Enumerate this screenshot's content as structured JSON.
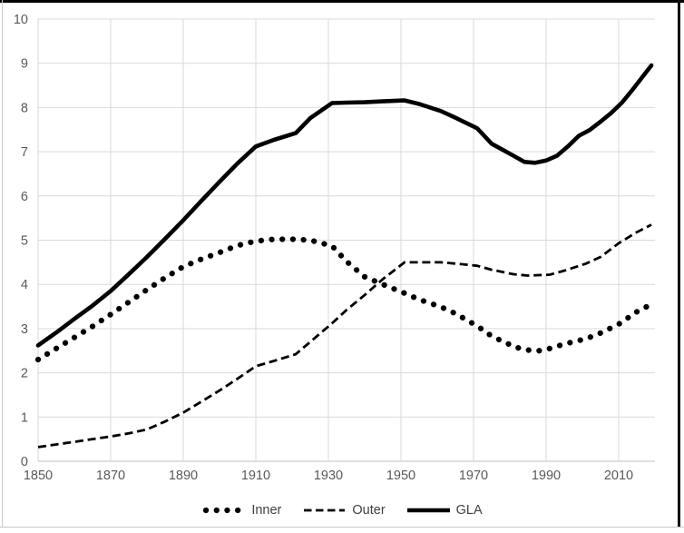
{
  "chart_data": {
    "type": "line",
    "title": "",
    "xlabel": "",
    "ylabel": "",
    "x_axis": {
      "min": 1850,
      "max": 2020,
      "ticks": [
        1850,
        1870,
        1890,
        1910,
        1930,
        1950,
        1970,
        1990,
        2010
      ]
    },
    "y_axis": {
      "min": 0,
      "max": 10,
      "ticks": [
        0,
        1,
        2,
        3,
        4,
        5,
        6,
        7,
        8,
        9,
        10
      ]
    },
    "grid": "on",
    "legend_position": "bottom-center",
    "colors": {
      "line": "#000000",
      "gridline": "#d9d9d9",
      "axis_line": "#bfbfbf",
      "tick_label": "#595959",
      "legend_text": "#404040"
    },
    "series": [
      {
        "name": "Inner",
        "style": "dotted",
        "points": [
          [
            1850,
            2.3
          ],
          [
            1855,
            2.55
          ],
          [
            1860,
            2.8
          ],
          [
            1865,
            3.05
          ],
          [
            1870,
            3.32
          ],
          [
            1875,
            3.6
          ],
          [
            1880,
            3.88
          ],
          [
            1885,
            4.15
          ],
          [
            1890,
            4.4
          ],
          [
            1895,
            4.57
          ],
          [
            1900,
            4.72
          ],
          [
            1905,
            4.88
          ],
          [
            1910,
            4.98
          ],
          [
            1915,
            5.02
          ],
          [
            1921,
            5.02
          ],
          [
            1925,
            5.0
          ],
          [
            1931,
            4.87
          ],
          [
            1935,
            4.52
          ],
          [
            1940,
            4.17
          ],
          [
            1945,
            4.0
          ],
          [
            1951,
            3.8
          ],
          [
            1955,
            3.66
          ],
          [
            1961,
            3.49
          ],
          [
            1965,
            3.34
          ],
          [
            1971,
            3.06
          ],
          [
            1975,
            2.83
          ],
          [
            1981,
            2.6
          ],
          [
            1984,
            2.52
          ],
          [
            1988,
            2.5
          ],
          [
            1991,
            2.55
          ],
          [
            1995,
            2.65
          ],
          [
            2001,
            2.77
          ],
          [
            2005,
            2.9
          ],
          [
            2010,
            3.1
          ],
          [
            2015,
            3.38
          ],
          [
            2019,
            3.55
          ]
        ]
      },
      {
        "name": "Outer",
        "style": "dashed",
        "points": [
          [
            1850,
            0.32
          ],
          [
            1855,
            0.38
          ],
          [
            1860,
            0.44
          ],
          [
            1865,
            0.5
          ],
          [
            1870,
            0.56
          ],
          [
            1875,
            0.63
          ],
          [
            1880,
            0.72
          ],
          [
            1885,
            0.9
          ],
          [
            1890,
            1.1
          ],
          [
            1895,
            1.35
          ],
          [
            1900,
            1.6
          ],
          [
            1905,
            1.87
          ],
          [
            1910,
            2.15
          ],
          [
            1915,
            2.27
          ],
          [
            1921,
            2.42
          ],
          [
            1925,
            2.7
          ],
          [
            1931,
            3.12
          ],
          [
            1935,
            3.42
          ],
          [
            1940,
            3.76
          ],
          [
            1945,
            4.12
          ],
          [
            1951,
            4.5
          ],
          [
            1955,
            4.5
          ],
          [
            1961,
            4.5
          ],
          [
            1965,
            4.47
          ],
          [
            1971,
            4.42
          ],
          [
            1975,
            4.33
          ],
          [
            1981,
            4.23
          ],
          [
            1985,
            4.2
          ],
          [
            1991,
            4.22
          ],
          [
            1995,
            4.31
          ],
          [
            2001,
            4.47
          ],
          [
            2005,
            4.62
          ],
          [
            2010,
            4.93
          ],
          [
            2015,
            5.18
          ],
          [
            2019,
            5.35
          ]
        ]
      },
      {
        "name": "GLA",
        "style": "solid",
        "points": [
          [
            1850,
            2.62
          ],
          [
            1855,
            2.91
          ],
          [
            1860,
            3.22
          ],
          [
            1865,
            3.52
          ],
          [
            1870,
            3.85
          ],
          [
            1875,
            4.23
          ],
          [
            1880,
            4.62
          ],
          [
            1885,
            5.03
          ],
          [
            1890,
            5.45
          ],
          [
            1895,
            5.89
          ],
          [
            1900,
            6.32
          ],
          [
            1905,
            6.74
          ],
          [
            1910,
            7.12
          ],
          [
            1915,
            7.27
          ],
          [
            1921,
            7.42
          ],
          [
            1925,
            7.76
          ],
          [
            1931,
            8.1
          ],
          [
            1935,
            8.11
          ],
          [
            1940,
            8.12
          ],
          [
            1945,
            8.14
          ],
          [
            1951,
            8.16
          ],
          [
            1955,
            8.08
          ],
          [
            1961,
            7.92
          ],
          [
            1965,
            7.77
          ],
          [
            1971,
            7.53
          ],
          [
            1975,
            7.18
          ],
          [
            1981,
            6.91
          ],
          [
            1984,
            6.77
          ],
          [
            1987,
            6.75
          ],
          [
            1990,
            6.8
          ],
          [
            1993,
            6.91
          ],
          [
            1996,
            7.12
          ],
          [
            1999,
            7.36
          ],
          [
            2002,
            7.49
          ],
          [
            2005,
            7.68
          ],
          [
            2008,
            7.88
          ],
          [
            2011,
            8.12
          ],
          [
            2014,
            8.42
          ],
          [
            2017,
            8.74
          ],
          [
            2019,
            8.95
          ]
        ]
      }
    ]
  }
}
